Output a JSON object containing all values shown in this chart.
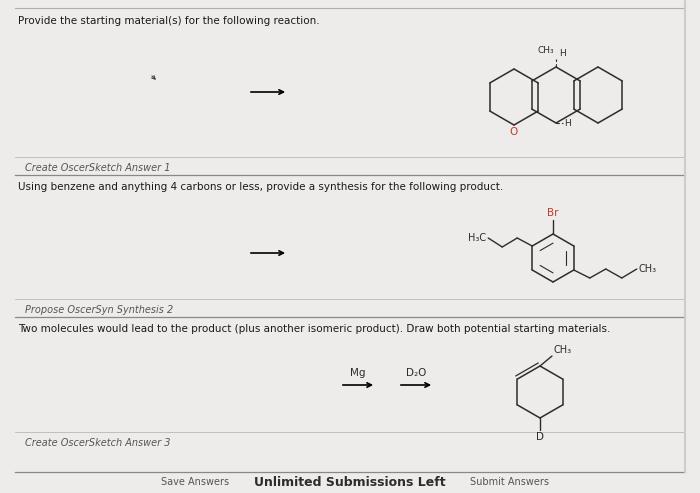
{
  "bg_color": "#edecea",
  "text_color": "#1a1a1a",
  "title1": "Provide the starting material(s) for the following reaction.",
  "title2": "Using benzene and anything 4 carbons or less, provide a synthesis for the following product.",
  "title3": "Two molecules would lead to the product (plus another isomeric product). Draw both potential starting materials.",
  "btn1": "Create OscerSketch Answer 1",
  "btn2": "Propose OscerSyn Synthesis 2",
  "btn3": "Create OscerSketch Answer 3",
  "footer_left": "Save Answers",
  "footer_center": "Unlimited Submissions Left",
  "footer_right": "Submit Answers",
  "red_color": "#c0392b",
  "struct_color": "#2c2c2c",
  "gray_line": "#b0aeab",
  "dark_line": "#888888",
  "btn_color": "#555555"
}
